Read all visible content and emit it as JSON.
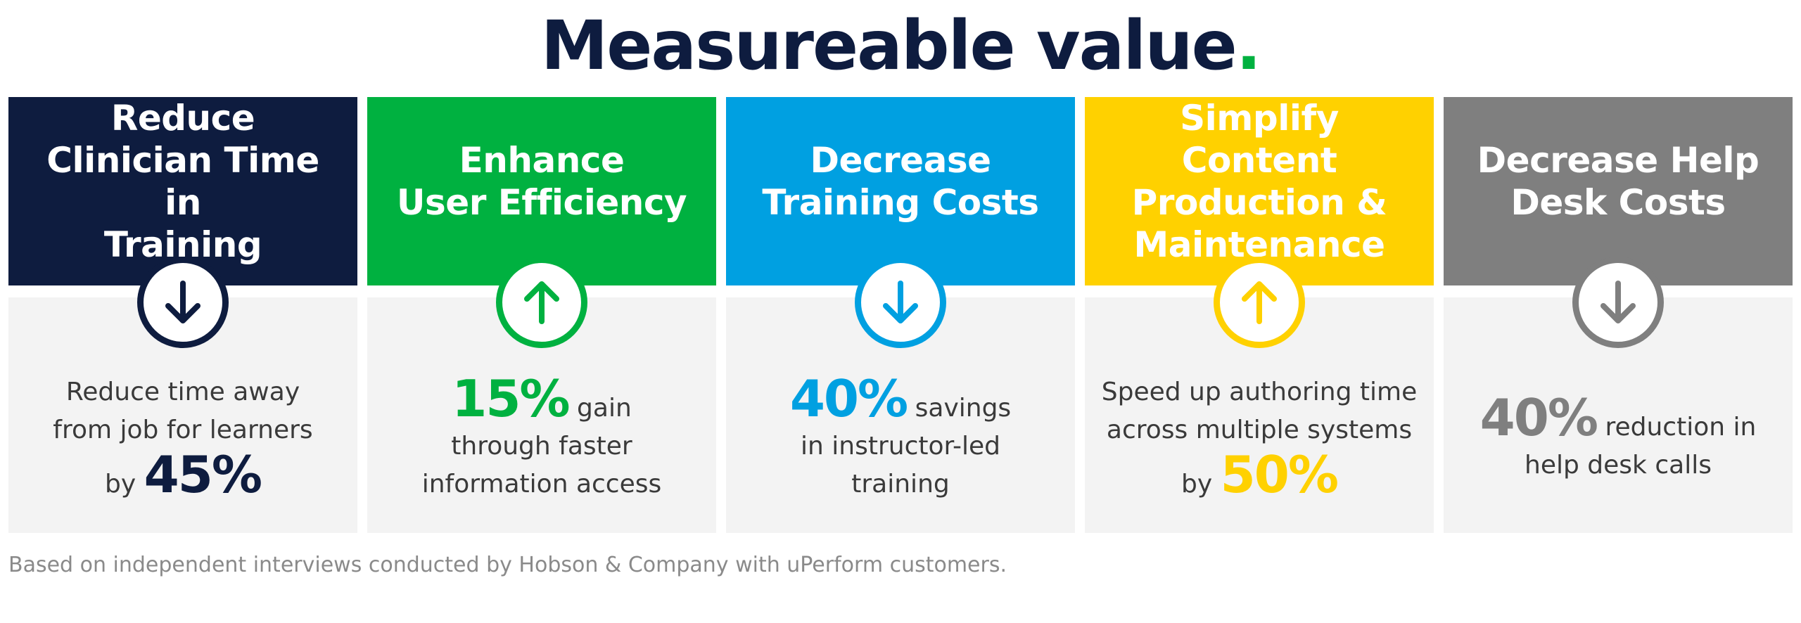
{
  "title": {
    "text": "Measureable value",
    "dot": "."
  },
  "cards": [
    {
      "header_lines": [
        "Reduce",
        "Clinician Time in",
        "Training"
      ],
      "color": "#0e1c3f",
      "icon": "arrow-down-icon",
      "stat_before": "",
      "stat": "45%",
      "text_before_lines": [
        "Reduce time away",
        "from job for learners"
      ],
      "prefix": "by",
      "text_after_lines": []
    },
    {
      "header_lines": [
        "Enhance",
        "User Efficiency"
      ],
      "color": "#00b140",
      "icon": "arrow-up-icon",
      "stat": "15%",
      "suffix": "gain",
      "text_after_lines": [
        "through faster",
        "information access"
      ]
    },
    {
      "header_lines": [
        "Decrease",
        "Training Costs"
      ],
      "color": "#00a0e1",
      "icon": "arrow-down-icon",
      "stat": "40%",
      "suffix": "savings",
      "text_after_lines": [
        "in instructor-led",
        "training"
      ]
    },
    {
      "header_lines": [
        "Simplify Content",
        "Production &",
        "Maintenance"
      ],
      "color": "#ffd100",
      "icon": "arrow-up-icon",
      "stat": "50%",
      "text_before_lines": [
        "Speed up authoring time",
        "across multiple systems"
      ],
      "prefix": "by"
    },
    {
      "header_lines": [
        "Decrease Help",
        "Desk Costs"
      ],
      "color": "#7f7f7f",
      "icon": "arrow-down-icon",
      "stat": "40%",
      "suffix": "reduction in",
      "text_after_lines": [
        "help desk calls"
      ]
    }
  ],
  "footnote": "Based on independent interviews conducted by Hobson & Company with uPerform customers."
}
